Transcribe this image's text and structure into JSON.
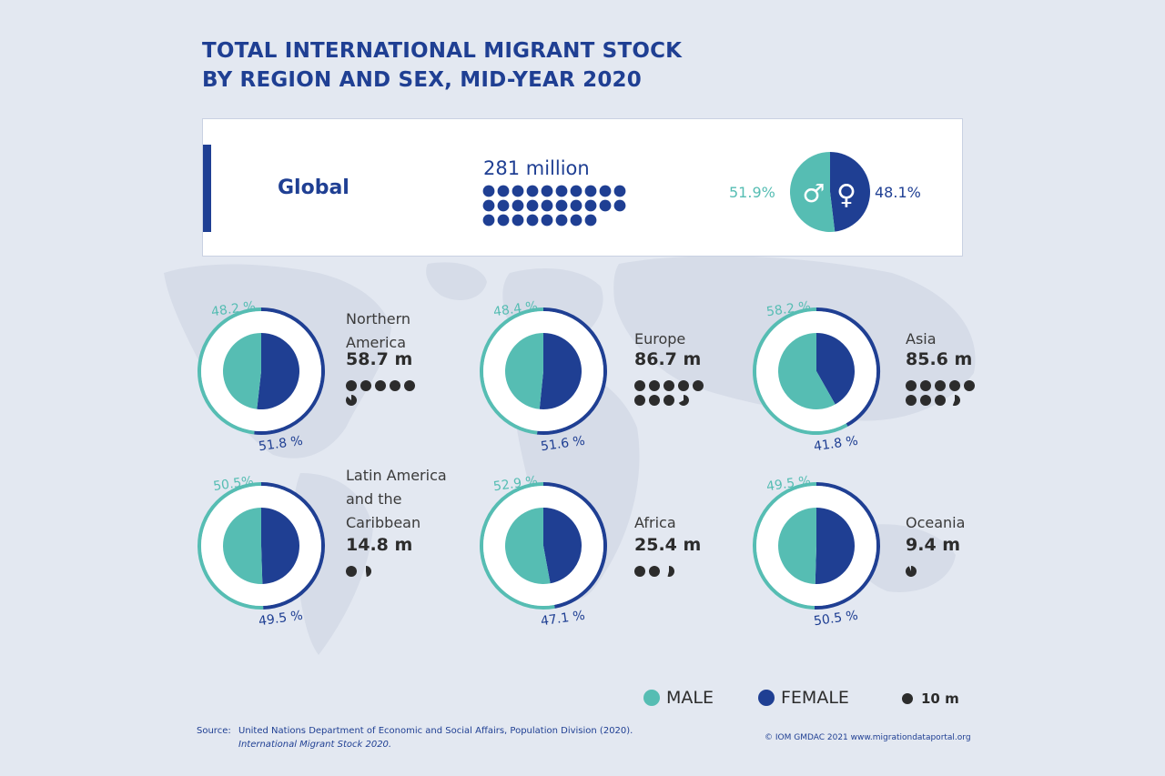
{
  "title_line1": "TOTAL INTERNATIONAL MIGRANT STOCK",
  "title_line2": "BY REGION AND SEX, MID-YEAR 2020",
  "colors": {
    "male": "#56bdb3",
    "female": "#1f3f93",
    "dot": "#2c2c2c",
    "title": "#1f3f93"
  },
  "global": {
    "label": "Global",
    "total": "281 million",
    "male_pct": "51.9%",
    "female_pct": "48.1%",
    "male_symbol": "♂",
    "female_symbol": "♀"
  },
  "legend": {
    "male": "MALE",
    "female": "FEMALE",
    "dot_unit": "10 m"
  },
  "source": {
    "label": "Source:",
    "line1": "United Nations Department of Economic and Social Affairs, Population Division (2020).",
    "line2": "International Migrant Stock 2020."
  },
  "credit": "© IOM GMDAC 2021 www.migrationdataportal.org",
  "chart_data": {
    "type": "pie",
    "title": "TOTAL INTERNATIONAL MIGRANT STOCK BY REGION AND SEX, MID-YEAR 2020",
    "unit_dot": "10 m",
    "global": {
      "total_millions": 281,
      "male_pct": 51.9,
      "female_pct": 48.1
    },
    "regions": [
      {
        "name": "Northern\nAmerica",
        "total_label": "58.7 m",
        "total_millions": 58.7,
        "male_pct": 48.2,
        "female_pct": 51.8,
        "male_label": "48.2 %",
        "female_label": "51.8 %"
      },
      {
        "name": "Europe",
        "total_label": "86.7 m",
        "total_millions": 86.7,
        "male_pct": 48.4,
        "female_pct": 51.6,
        "male_label": "48.4 %",
        "female_label": "51.6 %"
      },
      {
        "name": "Asia",
        "total_label": "85.6 m",
        "total_millions": 85.6,
        "male_pct": 58.2,
        "female_pct": 41.8,
        "male_label": "58.2 %",
        "female_label": "41.8 %"
      },
      {
        "name": "Latin America\nand the\nCaribbean",
        "total_label": "14.8 m",
        "total_millions": 14.8,
        "male_pct": 50.5,
        "female_pct": 49.5,
        "male_label": "50.5%",
        "female_label": "49.5 %"
      },
      {
        "name": "Africa",
        "total_label": "25.4 m",
        "total_millions": 25.4,
        "male_pct": 52.9,
        "female_pct": 47.1,
        "male_label": "52.9 %",
        "female_label": "47.1 %"
      },
      {
        "name": "Oceania",
        "total_label": "9.4 m",
        "total_millions": 9.4,
        "male_pct": 49.5,
        "female_pct": 50.5,
        "male_label": "49.5 %",
        "female_label": "50.5 %"
      }
    ]
  }
}
